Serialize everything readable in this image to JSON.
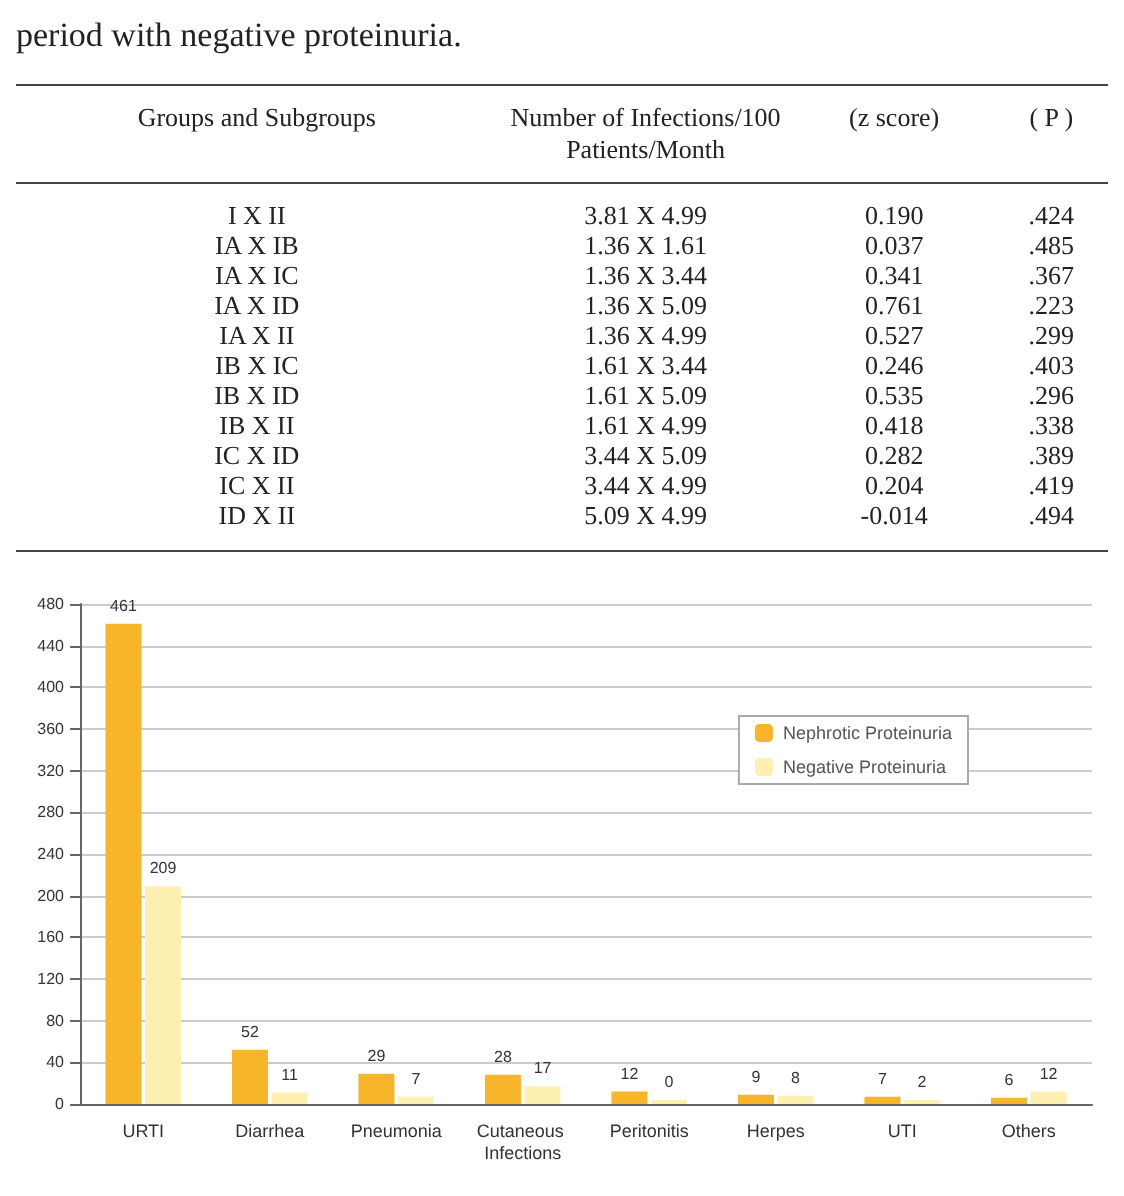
{
  "chart_data": [
    {
      "type": "other",
      "title": "period with negative proteinuria.",
      "categories": [
        "Groups and Subgroups",
        "Number of Infections/100 Patients/Month",
        "(z score)",
        "( P )"
      ],
      "y_categories": [
        "I X II",
        "IA X IB",
        "IA X IC",
        "IA X ID",
        "IA X II",
        "IB X IC",
        "IB X ID",
        "IB X II",
        "IC X ID",
        "IC X II",
        "ID X II"
      ],
      "cell_labels": [
        [
          "3.81 X 4.99",
          "0.190",
          ".424"
        ],
        [
          "1.36 X 1.61",
          "0.037",
          ".485"
        ],
        [
          "1.36 X 3.44",
          "0.341",
          ".367"
        ],
        [
          "1.36 X 5.09",
          "0.761",
          ".223"
        ],
        [
          "1.36 X 4.99",
          "0.527",
          ".299"
        ],
        [
          "1.61 X 3.44",
          "0.246",
          ".403"
        ],
        [
          "1.61 X 5.09",
          "0.535",
          ".296"
        ],
        [
          "1.61 X 4.99",
          "0.418",
          ".338"
        ],
        [
          "3.44 X 5.09",
          "0.282",
          ".389"
        ],
        [
          "3.44 X 4.99",
          "0.204",
          ".419"
        ],
        [
          "5.09 X 4.99",
          "-0.014",
          ".494"
        ]
      ]
    },
    {
      "type": "bar",
      "categories": [
        "URTI",
        "Diarrhea",
        "Pneumonia",
        "Cutaneous Infections",
        "Peritonitis",
        "Herpes",
        "UTI",
        "Others"
      ],
      "series": [
        {
          "name": "Nephrotic Proteinuria",
          "color": "#f7b52a",
          "values": [
            461,
            52,
            29,
            28,
            12,
            9,
            7,
            6
          ]
        },
        {
          "name": "Negative Proteinuria",
          "color": "#fdf0b0",
          "values": [
            209,
            11,
            7,
            17,
            0,
            8,
            2,
            12
          ]
        }
      ],
      "ylim": [
        0,
        480
      ],
      "yticks": [
        0,
        40,
        80,
        120,
        160,
        200,
        240,
        280,
        320,
        360,
        400,
        440,
        480
      ],
      "grid": "y",
      "legend": "right",
      "data_labels": true
    }
  ]
}
